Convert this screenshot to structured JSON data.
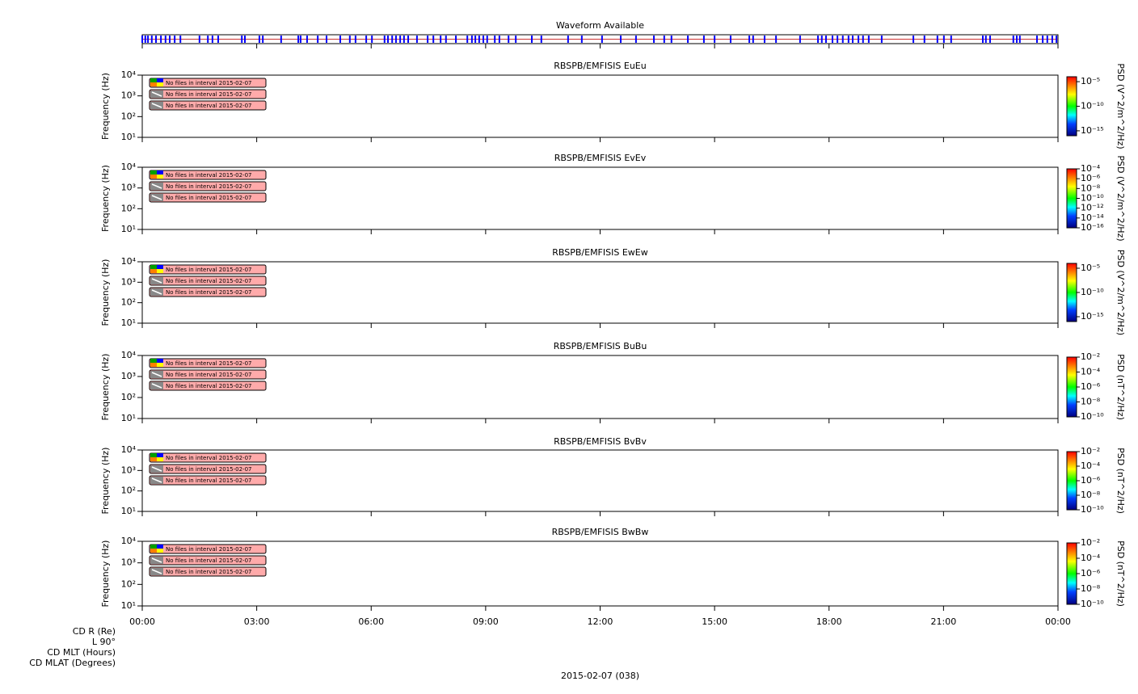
{
  "chart_data": [
    {
      "type": "timeline",
      "title": "Waveform Available",
      "color": "#0000ff",
      "xlim": [
        0,
        24
      ],
      "values": [
        0,
        0.08,
        0.15,
        0.25,
        0.36,
        0.49,
        0.61,
        0.72,
        0.85,
        1.0,
        1.5,
        1.72,
        1.84,
        1.99,
        2.61,
        2.69,
        3.07,
        3.16,
        3.64,
        4.09,
        4.15,
        4.32,
        4.6,
        4.83,
        5.19,
        5.44,
        5.59,
        5.87,
        6.02,
        6.35,
        6.44,
        6.55,
        6.65,
        6.76,
        6.86,
        6.97,
        7.2,
        7.48,
        7.63,
        7.82,
        7.96,
        8.22,
        8.52,
        8.64,
        8.73,
        8.83,
        8.94,
        9.04,
        9.24,
        9.36,
        9.6,
        9.79,
        10.21,
        10.46,
        11.16,
        11.52,
        12.05,
        12.54,
        12.94,
        13.41,
        13.68,
        13.87,
        14.3,
        14.72,
        15.0,
        15.42,
        15.91,
        16.01,
        16.31,
        16.61,
        17.24,
        17.71,
        17.81,
        17.92,
        18.09,
        18.22,
        18.36,
        18.51,
        18.62,
        18.77,
        18.89,
        19.04,
        19.38,
        20.21,
        20.5,
        20.84,
        21.01,
        21.2,
        22.03,
        22.11,
        22.22,
        22.83,
        22.92,
        23.0,
        23.45,
        23.6,
        23.72,
        23.85,
        23.96
      ]
    },
    {
      "type": "spectrogram",
      "title": "RBSPB/EMFISIS  EuEu",
      "y_label": "Frequency (Hz)",
      "log_y": true,
      "xlim": [
        0,
        24
      ],
      "ylim": [
        10,
        10000
      ],
      "yticks": [
        {
          "value": 10,
          "label": "10¹"
        },
        {
          "value": 100,
          "label": "10²"
        },
        {
          "value": 1000,
          "label": "10³"
        },
        {
          "value": 10000,
          "label": "10⁴"
        }
      ],
      "z_label": "PSD (V^2/m^2/Hz)",
      "zlim": [
        1e-16,
        0.0001
      ],
      "zticks": [
        {
          "value": 1e-05,
          "label": "10⁻⁵"
        },
        {
          "value": 1e-10,
          "label": "10⁻¹⁰"
        },
        {
          "value": 1e-15,
          "label": "10⁻¹⁵"
        }
      ],
      "messages": [
        "No files in interval 2015-02-07",
        "No files in interval 2015-02-07",
        "No files in interval 2015-02-07"
      ]
    },
    {
      "type": "spectrogram",
      "title": "RBSPB/EMFISIS  EvEv",
      "y_label": "Frequency (Hz)",
      "log_y": true,
      "xlim": [
        0,
        24
      ],
      "ylim": [
        10,
        10000
      ],
      "yticks": [
        {
          "value": 10,
          "label": "10¹"
        },
        {
          "value": 100,
          "label": "10²"
        },
        {
          "value": 1000,
          "label": "10³"
        },
        {
          "value": 10000,
          "label": "10⁴"
        }
      ],
      "z_label": "PSD (V^2/m^2/Hz)",
      "zlim": [
        1e-16,
        0.0001
      ],
      "zticks": [
        {
          "value": 0.0001,
          "label": "10⁻⁴"
        },
        {
          "value": 1e-06,
          "label": "10⁻⁶"
        },
        {
          "value": 1e-08,
          "label": "10⁻⁸"
        },
        {
          "value": 1e-10,
          "label": "10⁻¹⁰"
        },
        {
          "value": 1e-12,
          "label": "10⁻¹²"
        },
        {
          "value": 1e-14,
          "label": "10⁻¹⁴"
        },
        {
          "value": 1e-16,
          "label": "10⁻¹⁶"
        }
      ],
      "messages": [
        "No files in interval 2015-02-07",
        "No files in interval 2015-02-07",
        "No files in interval 2015-02-07"
      ]
    },
    {
      "type": "spectrogram",
      "title": "RBSPB/EMFISIS  EwEw",
      "y_label": "Frequency (Hz)",
      "log_y": true,
      "xlim": [
        0,
        24
      ],
      "ylim": [
        10,
        10000
      ],
      "yticks": [
        {
          "value": 10,
          "label": "10¹"
        },
        {
          "value": 100,
          "label": "10²"
        },
        {
          "value": 1000,
          "label": "10³"
        },
        {
          "value": 10000,
          "label": "10⁴"
        }
      ],
      "z_label": "PSD (V^2/m^2/Hz)",
      "zlim": [
        1e-16,
        0.0001
      ],
      "zticks": [
        {
          "value": 1e-05,
          "label": "10⁻⁵"
        },
        {
          "value": 1e-10,
          "label": "10⁻¹⁰"
        },
        {
          "value": 1e-15,
          "label": "10⁻¹⁵"
        }
      ],
      "messages": [
        "No files in interval 2015-02-07",
        "No files in interval 2015-02-07",
        "No files in interval 2015-02-07"
      ]
    },
    {
      "type": "spectrogram",
      "title": "RBSPB/EMFISIS  BuBu",
      "y_label": "Frequency (Hz)",
      "log_y": true,
      "xlim": [
        0,
        24
      ],
      "ylim": [
        10,
        10000
      ],
      "yticks": [
        {
          "value": 10,
          "label": "10¹"
        },
        {
          "value": 100,
          "label": "10²"
        },
        {
          "value": 1000,
          "label": "10³"
        },
        {
          "value": 10000,
          "label": "10⁴"
        }
      ],
      "z_label": "PSD (nT^2/Hz)",
      "zlim": [
        1e-10,
        0.01
      ],
      "zticks": [
        {
          "value": 0.01,
          "label": "10⁻²"
        },
        {
          "value": 0.0001,
          "label": "10⁻⁴"
        },
        {
          "value": 1e-06,
          "label": "10⁻⁶"
        },
        {
          "value": 1e-08,
          "label": "10⁻⁸"
        },
        {
          "value": 1e-10,
          "label": "10⁻¹⁰"
        }
      ],
      "messages": [
        "No files in interval 2015-02-07",
        "No files in interval 2015-02-07",
        "No files in interval 2015-02-07"
      ]
    },
    {
      "type": "spectrogram",
      "title": "RBSPB/EMFISIS  BvBv",
      "y_label": "Frequency (Hz)",
      "log_y": true,
      "xlim": [
        0,
        24
      ],
      "ylim": [
        10,
        10000
      ],
      "yticks": [
        {
          "value": 10,
          "label": "10¹"
        },
        {
          "value": 100,
          "label": "10²"
        },
        {
          "value": 1000,
          "label": "10³"
        },
        {
          "value": 10000,
          "label": "10⁴"
        }
      ],
      "z_label": "PSD (nT^2/Hz)",
      "zlim": [
        1e-10,
        0.01
      ],
      "zticks": [
        {
          "value": 0.01,
          "label": "10⁻²"
        },
        {
          "value": 0.0001,
          "label": "10⁻⁴"
        },
        {
          "value": 1e-06,
          "label": "10⁻⁶"
        },
        {
          "value": 1e-08,
          "label": "10⁻⁸"
        },
        {
          "value": 1e-10,
          "label": "10⁻¹⁰"
        }
      ],
      "messages": [
        "No files in interval 2015-02-07",
        "No files in interval 2015-02-07",
        "No files in interval 2015-02-07"
      ]
    },
    {
      "type": "spectrogram",
      "title": "RBSPB/EMFISIS  BwBw",
      "y_label": "Frequency (Hz)",
      "log_y": true,
      "xlim": [
        0,
        24
      ],
      "ylim": [
        10,
        10000
      ],
      "yticks": [
        {
          "value": 10,
          "label": "10¹"
        },
        {
          "value": 100,
          "label": "10²"
        },
        {
          "value": 1000,
          "label": "10³"
        },
        {
          "value": 10000,
          "label": "10⁴"
        }
      ],
      "z_label": "PSD (nT^2/Hz)",
      "zlim": [
        1e-10,
        0.01
      ],
      "zticks": [
        {
          "value": 0.01,
          "label": "10⁻²"
        },
        {
          "value": 0.0001,
          "label": "10⁻⁴"
        },
        {
          "value": 1e-06,
          "label": "10⁻⁶"
        },
        {
          "value": 1e-08,
          "label": "10⁻⁸"
        },
        {
          "value": 1e-10,
          "label": "10⁻¹⁰"
        }
      ],
      "messages": [
        "No files in interval 2015-02-07",
        "No files in interval 2015-02-07",
        "No files in interval 2015-02-07"
      ],
      "xticks": [
        {
          "value": 0,
          "label": "00:00"
        },
        {
          "value": 3,
          "label": "03:00"
        },
        {
          "value": 6,
          "label": "06:00"
        },
        {
          "value": 9,
          "label": "09:00"
        },
        {
          "value": 12,
          "label": "12:00"
        },
        {
          "value": 15,
          "label": "15:00"
        },
        {
          "value": 18,
          "label": "18:00"
        },
        {
          "value": 21,
          "label": "21:00"
        },
        {
          "value": 24,
          "label": "00:00"
        }
      ],
      "ephemeris_labels": [
        "CD R (Re)",
        "L 90°",
        "CD MLT (Hours)",
        "CD MLAT (Degrees)"
      ],
      "x_label": "2015-02-07 (038)"
    }
  ]
}
